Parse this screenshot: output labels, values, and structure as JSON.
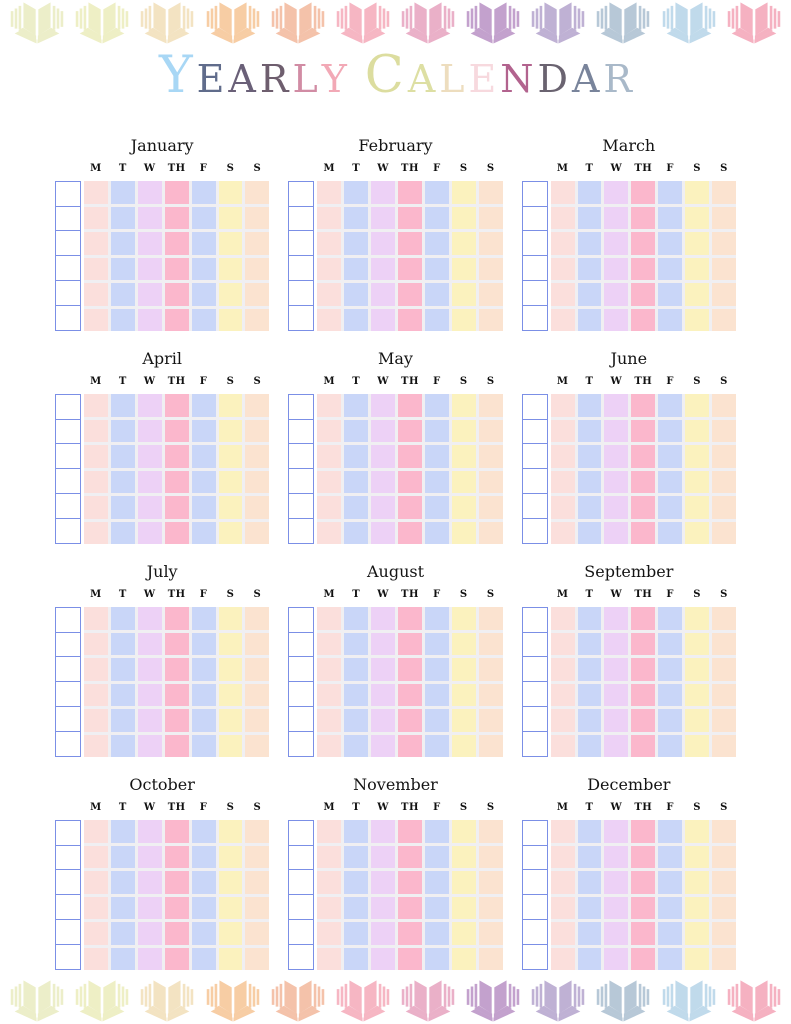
{
  "title": {
    "text": "YEARLY CALENDAR",
    "letters": [
      {
        "char": "Y",
        "color": "#A8D7F5",
        "size": "large"
      },
      {
        "char": "E",
        "color": "#606C8B",
        "size": "normal"
      },
      {
        "char": "A",
        "color": "#6A6078",
        "size": "normal"
      },
      {
        "char": "R",
        "color": "#6E5E6E",
        "size": "normal"
      },
      {
        "char": "L",
        "color": "#D18CA4",
        "size": "normal"
      },
      {
        "char": "Y",
        "color": "#F2A9B6",
        "size": "normal"
      },
      {
        "char": " ",
        "color": "",
        "size": "space"
      },
      {
        "char": "C",
        "color": "#DCDD9F",
        "size": "large"
      },
      {
        "char": "A",
        "color": "#DDDFA3",
        "size": "normal"
      },
      {
        "char": "L",
        "color": "#EDDDBE",
        "size": "normal"
      },
      {
        "char": "E",
        "color": "#F7D9DE",
        "size": "normal"
      },
      {
        "char": "N",
        "color": "#B2638E",
        "size": "normal"
      },
      {
        "char": "D",
        "color": "#6A6370",
        "size": "normal"
      },
      {
        "char": "A",
        "color": "#79849B",
        "size": "normal"
      },
      {
        "char": "R",
        "color": "#A9B9C9",
        "size": "normal"
      }
    ]
  },
  "calendar": {
    "day_headers": [
      "M",
      "T",
      "W",
      "TH",
      "F",
      "S",
      "S"
    ],
    "weeks_per_month": 6,
    "months": [
      "January",
      "February",
      "March",
      "April",
      "May",
      "June",
      "July",
      "August",
      "September",
      "October",
      "November",
      "December"
    ],
    "day_column_colors": [
      "#FBDFDC",
      "#C9D6F8",
      "#EDD1F6",
      "#FBB7CC",
      "#C9D6F8",
      "#FBF2BE",
      "#FBE3D0"
    ],
    "week_box_border_color": "#7B8FE6",
    "grid_gap_color": "#F0EFF2"
  },
  "decor": {
    "icon": "open-book-icon",
    "books_per_row": 12,
    "book_colors": [
      "#ECEEC9",
      "#EEEFC5",
      "#F3E3C2",
      "#F7CDA4",
      "#F4C2AA",
      "#F6B6C3",
      "#EAB0C8",
      "#C3A1CD",
      "#BFB1D4",
      "#B7C8D7",
      "#C0DAEB",
      "#F5B1C1"
    ]
  }
}
